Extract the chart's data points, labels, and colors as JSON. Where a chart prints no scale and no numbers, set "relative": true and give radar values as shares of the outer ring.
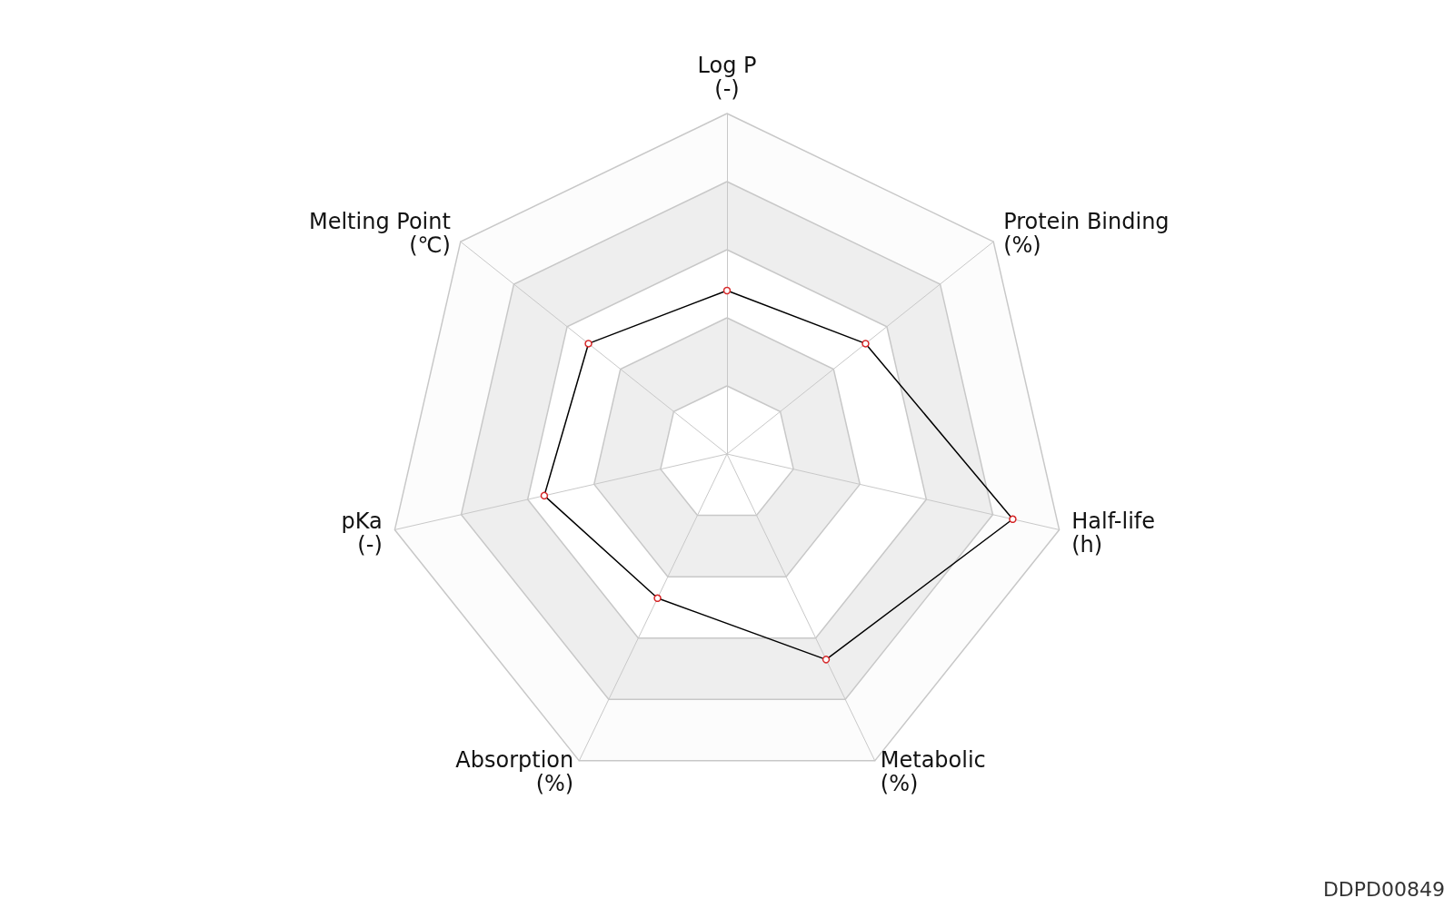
{
  "chart_data": {
    "type": "radar",
    "relative": true,
    "categories": [
      "Log P\n(-)",
      "Protein Binding\n(%)",
      "Half-life\n(h)",
      "Metabolic\n(%)",
      "Absorption\n(%)",
      "pKa\n(-)",
      "Melting Point\n(℃)"
    ],
    "series": [
      {
        "color": "#000000",
        "values": [
          0.48,
          0.52,
          0.86,
          0.67,
          0.47,
          0.55,
          0.52
        ]
      }
    ],
    "marker": "circle",
    "annotations": [
      "DDPD00849"
    ]
  }
}
